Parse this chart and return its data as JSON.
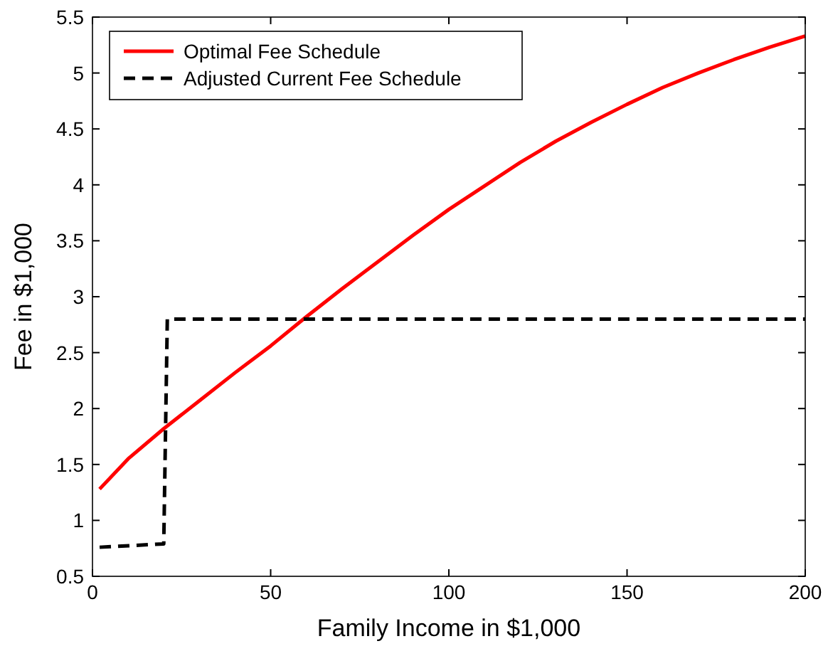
{
  "chart_data": {
    "type": "line",
    "xlabel": "Family Income in $1,000",
    "ylabel": "Fee in $1,000",
    "xlim": [
      0,
      200
    ],
    "xticks": [
      0,
      50,
      100,
      150,
      200
    ],
    "ylim": [
      0.5,
      5.5
    ],
    "yticks": [
      0.5,
      1,
      1.5,
      2,
      2.5,
      3,
      3.5,
      4,
      4.5,
      5,
      5.5
    ],
    "grid": false,
    "legend": "top left",
    "marker": "none",
    "series": [
      {
        "name": "Optimal Fee Schedule",
        "color": "#ff0000",
        "line_style": "solid",
        "x": [
          2,
          10,
          20,
          30,
          40,
          50,
          60,
          70,
          80,
          90,
          100,
          110,
          120,
          130,
          140,
          150,
          160,
          170,
          180,
          190,
          200
        ],
        "values": [
          1.28,
          1.55,
          1.82,
          2.07,
          2.32,
          2.56,
          2.82,
          3.07,
          3.31,
          3.55,
          3.78,
          3.99,
          4.2,
          4.39,
          4.56,
          4.72,
          4.87,
          5.0,
          5.12,
          5.23,
          5.33
        ]
      },
      {
        "name": "Adjusted Current Fee Schedule",
        "color": "#000000",
        "line_style": "dashed",
        "x": [
          2,
          20,
          21,
          200
        ],
        "values": [
          0.76,
          0.79,
          2.8,
          2.8
        ]
      }
    ]
  }
}
